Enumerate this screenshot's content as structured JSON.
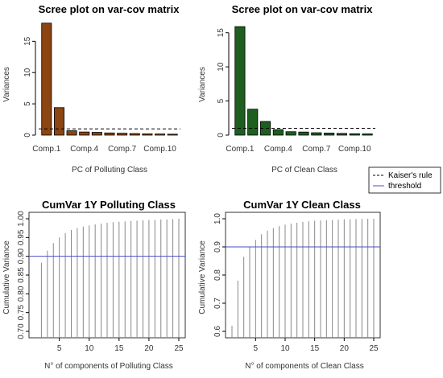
{
  "chart_data": [
    {
      "type": "bar",
      "title": "Scree plot on var-cov matrix",
      "xlabel": "PC of Polluting Class",
      "ylabel": "Variances",
      "categories": [
        "Comp.1",
        "Comp.2",
        "Comp.3",
        "Comp.4",
        "Comp.5",
        "Comp.6",
        "Comp.7",
        "Comp.8",
        "Comp.9",
        "Comp.10",
        "Comp.11"
      ],
      "xtick_labels": [
        "Comp.1",
        "Comp.4",
        "Comp.7",
        "Comp.10"
      ],
      "values": [
        17.9,
        4.4,
        0.7,
        0.5,
        0.45,
        0.35,
        0.3,
        0.25,
        0.2,
        0.18,
        0.15
      ],
      "ylim": [
        0,
        18
      ],
      "yticks": [
        0,
        5,
        10,
        15
      ],
      "threshold": 1,
      "bar_color": "#8B4513"
    },
    {
      "type": "bar",
      "title": "Scree plot on var-cov matrix",
      "xlabel": "PC of Clean Class",
      "ylabel": "Variances",
      "categories": [
        "Comp.1",
        "Comp.2",
        "Comp.3",
        "Comp.4",
        "Comp.5",
        "Comp.6",
        "Comp.7",
        "Comp.8",
        "Comp.9",
        "Comp.10",
        "Comp.11"
      ],
      "xtick_labels": [
        "Comp.1",
        "Comp.4",
        "Comp.7",
        "Comp.10"
      ],
      "values": [
        15.9,
        3.8,
        2.0,
        0.8,
        0.5,
        0.45,
        0.35,
        0.3,
        0.25,
        0.2,
        0.18
      ],
      "ylim": [
        0,
        16.5
      ],
      "yticks": [
        0,
        5,
        10,
        15
      ],
      "threshold": 1,
      "bar_color": "#1E5E1E"
    },
    {
      "type": "line",
      "title": "CumVar 1Y Polluting Class",
      "xlabel": "N° of components of Polluting Class",
      "ylabel": "Cumulative Variance",
      "x": [
        1,
        2,
        3,
        4,
        5,
        6,
        7,
        8,
        9,
        10,
        11,
        12,
        13,
        14,
        15,
        16,
        17,
        18,
        19,
        20,
        21,
        22,
        23,
        24,
        25
      ],
      "values": [
        0.55,
        0.883,
        0.915,
        0.935,
        0.95,
        0.962,
        0.97,
        0.975,
        0.979,
        0.982,
        0.985,
        0.987,
        0.989,
        0.991,
        0.992,
        0.993,
        0.994,
        0.995,
        0.996,
        0.997,
        0.997,
        0.998,
        0.998,
        0.999,
        1.0
      ],
      "xlim": [
        1,
        25
      ],
      "ylim": [
        0.7,
        1.0
      ],
      "xticks": [
        5,
        10,
        15,
        20,
        25
      ],
      "yticks": [
        0.7,
        0.75,
        0.8,
        0.85,
        0.9,
        0.95,
        1.0
      ],
      "ytick_labels": [
        "0.70",
        "0.75",
        "0.80",
        "0.85",
        "0.90",
        "0.95",
        "1.00"
      ],
      "threshold": 0.9
    },
    {
      "type": "line",
      "title": "CumVar 1Y Clean Class",
      "xlabel": "N° of components of Clean Class",
      "ylabel": "Cumulative Variance",
      "x": [
        1,
        2,
        3,
        4,
        5,
        6,
        7,
        8,
        9,
        10,
        11,
        12,
        13,
        14,
        15,
        16,
        17,
        18,
        19,
        20,
        21,
        22,
        23,
        24,
        25
      ],
      "values": [
        0.62,
        0.78,
        0.865,
        0.9,
        0.925,
        0.945,
        0.958,
        0.967,
        0.974,
        0.979,
        0.983,
        0.986,
        0.989,
        0.991,
        0.993,
        0.994,
        0.995,
        0.996,
        0.997,
        0.998,
        0.998,
        0.999,
        0.999,
        1.0,
        1.0
      ],
      "xlim": [
        1,
        25
      ],
      "ylim": [
        0.6,
        1.0
      ],
      "xticks": [
        5,
        10,
        15,
        20,
        25
      ],
      "yticks": [
        0.6,
        0.7,
        0.8,
        0.9,
        1.0
      ],
      "ytick_labels": [
        "0.6",
        "0.7",
        "0.8",
        "0.9",
        "1.0"
      ],
      "threshold": 0.9
    }
  ],
  "legend": {
    "items": [
      {
        "label": "Kaiser's rule",
        "style": "dashed",
        "color": "#000000"
      },
      {
        "label": "threshold",
        "style": "solid",
        "color": "#4B4BC8"
      }
    ]
  },
  "colors": {
    "threshold_line": "#4B4BC8",
    "kaiser_line": "#000000",
    "cumvar_lines": "#888888"
  }
}
